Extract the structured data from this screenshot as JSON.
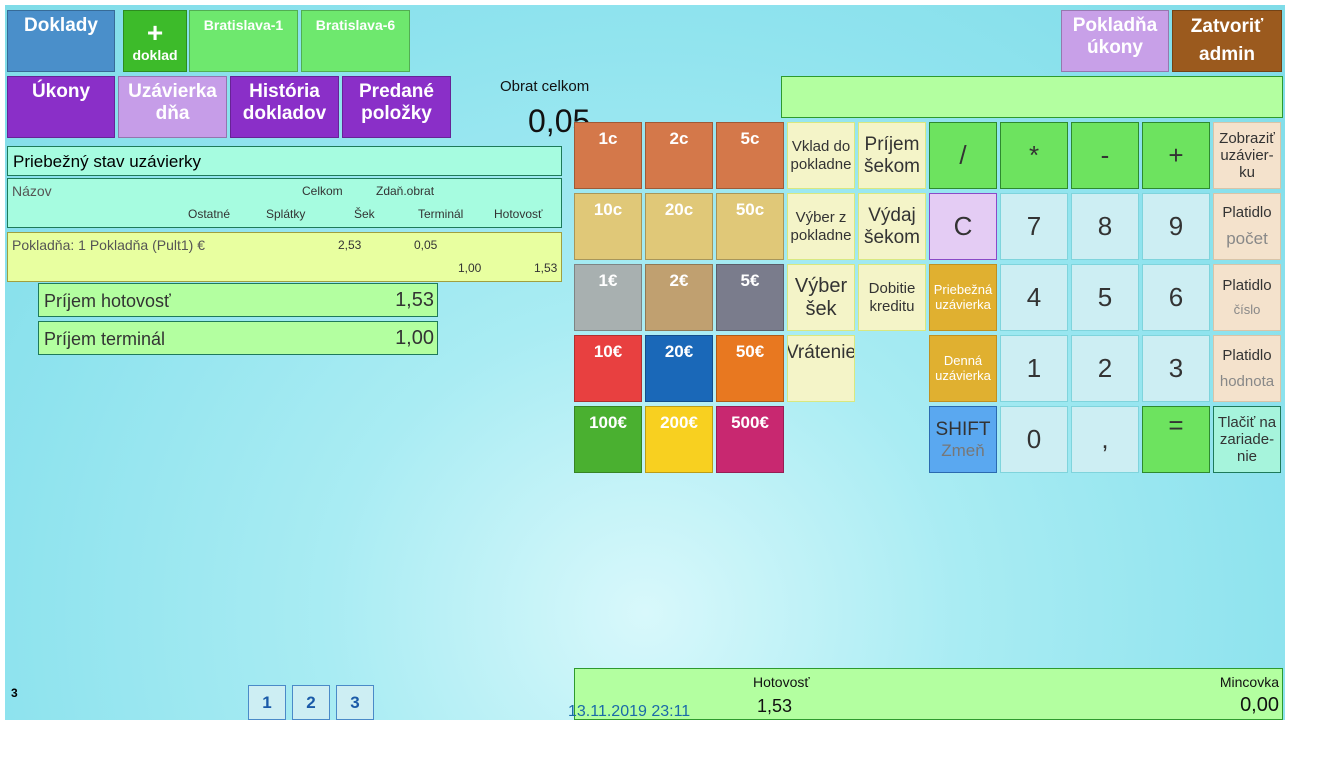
{
  "top": {
    "doklady": "Doklady",
    "plus": "+",
    "novy_doklad": "doklad",
    "tab1": "Bratislava-1",
    "tab2": "Bratislava-6",
    "pokladna_ukony": "Pokladňa úkony",
    "zatvorit": "Zatvoriť admin"
  },
  "nav": {
    "ukony": "Úkony",
    "uzavierka": "Uzávierka dňa",
    "historia": "História dokladov",
    "predane": "Predané položky"
  },
  "obrat": {
    "label": "Obrat celkom",
    "value": "0,05"
  },
  "display": {
    "value": ""
  },
  "coins": [
    "1c",
    "2c",
    "5c",
    "10c",
    "20c",
    "50c",
    "1€",
    "2€",
    "5€",
    "10€",
    "20€",
    "50€",
    "100€",
    "200€",
    "500€"
  ],
  "coin_colors": [
    "#d4784a",
    "#d4784a",
    "#d4784a",
    "#e0c878",
    "#e0c878",
    "#e0c878",
    "#a8b0b0",
    "#c0a070",
    "#7a7c8c",
    "#e84040",
    "#1a68b8",
    "#e87820",
    "#4ab030",
    "#f8d020",
    "#c82870"
  ],
  "functions": {
    "vklad": "Vklad do pokladne",
    "prijem_sek": "Príjem šekom",
    "vyber": "Výber z pokladne",
    "vydaj_sek": "Výdaj šekom",
    "vyber_sek": "Výber šek",
    "dobitie": "Dobitie kreditu",
    "vratenie": "Vrátenie"
  },
  "keypad": {
    "div": "/",
    "mul": "*",
    "sub": "-",
    "add": "+",
    "clear": "C",
    "k7": "7",
    "k8": "8",
    "k9": "9",
    "k4": "4",
    "k5": "5",
    "k6": "6",
    "k1": "1",
    "k2": "2",
    "k3": "3",
    "k0": "0",
    "comma": ",",
    "eq": "=",
    "priebezna": "Priebežná uzávierka",
    "denna": "Denná uzávierka",
    "shift": "SHIFT",
    "shift_sub": "Zmeň"
  },
  "side": {
    "zobrazit": "Zobraziť uzávier-ku",
    "platidlo": "Platidlo",
    "pocet": "počet",
    "cislo": "číslo",
    "hodnota": "hodnota",
    "tlacit": "Tlačiť na zariade-nie"
  },
  "report": {
    "title": "Priebežný stav uzávierky",
    "cols": {
      "nazov": "Názov",
      "celkom": "Celkom",
      "zdan": "Zdaň.obrat",
      "ostatne": "Ostatné",
      "splatky": "Splátky",
      "sek": "Šek",
      "terminal": "Terminál",
      "hotovost": "Hotovosť"
    },
    "row": {
      "name": "Pokladňa: 1 Pokladňa (Pult1) €",
      "celkom": "2,53",
      "zdan": "0,05",
      "terminal": "1,00",
      "hotovost": "1,53"
    },
    "prijem_hotovost": {
      "label": "Príjem hotovosť",
      "value": "1,53"
    },
    "prijem_terminal": {
      "label": "Príjem terminál",
      "value": "1,00"
    }
  },
  "pager": {
    "count": "3",
    "pages": [
      "1",
      "2",
      "3"
    ]
  },
  "footer": {
    "hotovost_label": "Hotovosť",
    "hotovost": "1,53",
    "mincovka_label": "Mincovka",
    "mincovka": "0,00",
    "datetime": "13.11.2019 23:11"
  }
}
